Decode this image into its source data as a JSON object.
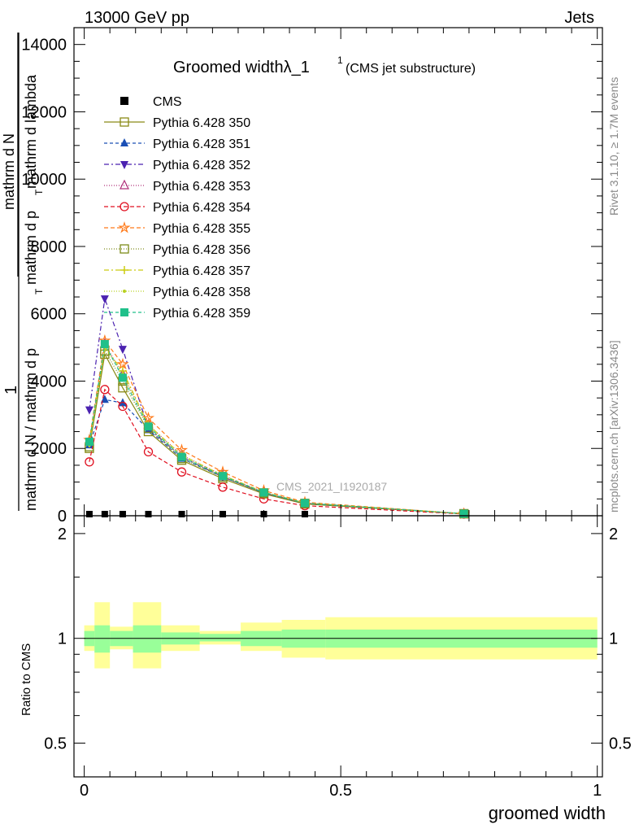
{
  "header": {
    "left": "13000 GeV pp",
    "right": "Jets"
  },
  "title": {
    "main": "Groomed widthλ_1",
    "superscript": "1",
    "sub": "(CMS jet substructure)"
  },
  "ylabel_main_parts": [
    "1",
    "mathrm d N / mathrm d p",
    "T",
    "mathrm d N",
    "mathrm d p",
    "T",
    "mathrm d lambda"
  ],
  "ylabel_ratio": "Ratio to CMS",
  "xlabel": "groomed width",
  "watermark": "CMS_2021_I1920187",
  "side_text": {
    "top": "Rivet 3.1.10, ≥ 1.7M events",
    "bottom": "mcplots.cern.ch [arXiv:1306.3436]"
  },
  "colors": {
    "p350": "#8a8a16",
    "p351": "#1a4fb5",
    "p352": "#4b22b0",
    "p353": "#b0307a",
    "p354": "#e01020",
    "p355": "#ff7a1a",
    "p356": "#7d8c1a",
    "p357": "#cccc10",
    "p358": "#b8d020",
    "p359": "#20c08a",
    "band_inner": "#99ff99",
    "band_outer": "#ffff99"
  },
  "chart_data": [
    {
      "type": "line",
      "panel": "main",
      "x": [
        0.01,
        0.04,
        0.075,
        0.125,
        0.19,
        0.27,
        0.35,
        0.43,
        0.74
      ],
      "xlim": [
        -0.02,
        1.01
      ],
      "ylim": [
        0,
        14500
      ],
      "yticks": [
        0,
        2000,
        4000,
        6000,
        8000,
        10000,
        12000,
        14000
      ],
      "ytick_labels": [
        "0",
        "2000",
        "4000",
        "6000",
        "8000",
        "10000",
        "12000",
        "14000"
      ],
      "series": [
        {
          "name": "CMS",
          "key": "cms",
          "marker": "square-filled",
          "values": [
            5,
            5,
            5,
            5,
            5,
            5,
            5,
            5,
            5
          ]
        },
        {
          "name": "Pythia 6.428 350",
          "key": "p350",
          "marker": "square-open",
          "dash": "",
          "values": [
            2000,
            4800,
            3800,
            2500,
            1650,
            1100,
            650,
            350,
            60
          ]
        },
        {
          "name": "Pythia 6.428 351",
          "key": "p351",
          "marker": "triangle-up-filled",
          "dash": "4,3",
          "values": [
            2100,
            3450,
            3350,
            2550,
            1700,
            1150,
            680,
            370,
            60
          ]
        },
        {
          "name": "Pythia 6.428 352",
          "key": "p352",
          "marker": "triangle-down-filled",
          "dash": "6,3,2,3",
          "values": [
            3150,
            6450,
            4950,
            2600,
            1750,
            1150,
            680,
            370,
            60
          ]
        },
        {
          "name": "Pythia 6.428 353",
          "key": "p353",
          "marker": "triangle-up-open",
          "dash": "1,2",
          "values": [
            2200,
            5100,
            4200,
            2700,
            1800,
            1200,
            700,
            380,
            60
          ]
        },
        {
          "name": "Pythia 6.428 354",
          "key": "p354",
          "marker": "circle-open",
          "dash": "5,3",
          "values": [
            1600,
            3750,
            3250,
            1900,
            1300,
            850,
            500,
            300,
            50
          ]
        },
        {
          "name": "Pythia 6.428 355",
          "key": "p355",
          "marker": "star-open",
          "dash": "5,3",
          "values": [
            2250,
            5200,
            4500,
            2900,
            1950,
            1300,
            750,
            400,
            60
          ]
        },
        {
          "name": "Pythia 6.428 356",
          "key": "p356",
          "marker": "square-open",
          "dash": "1,2",
          "values": [
            2050,
            4900,
            4000,
            2600,
            1700,
            1150,
            680,
            370,
            60
          ]
        },
        {
          "name": "Pythia 6.428 357",
          "key": "p357",
          "marker": "plus",
          "dash": "6,3,2,3",
          "values": [
            2150,
            5000,
            4300,
            2700,
            1800,
            1200,
            700,
            380,
            60
          ]
        },
        {
          "name": "Pythia 6.428 358",
          "key": "p358",
          "marker": "dot",
          "dash": "1,2",
          "values": [
            2100,
            5000,
            4200,
            2650,
            1750,
            1170,
            690,
            375,
            60
          ]
        },
        {
          "name": "Pythia 6.428 359",
          "key": "p359",
          "marker": "square-filled",
          "dash": "4,3",
          "values": [
            2200,
            5100,
            4100,
            2650,
            1750,
            1180,
            690,
            375,
            60
          ]
        }
      ]
    },
    {
      "type": "area",
      "panel": "ratio",
      "ylim": [
        0.4,
        2.25
      ],
      "log_y": true,
      "yticks": [
        0.5,
        1,
        2
      ],
      "ytick_labels": [
        "0.5",
        "1",
        "2"
      ],
      "xticks": [
        0,
        0.5,
        1
      ],
      "xtick_labels": [
        "0",
        "0.5",
        "1"
      ],
      "reference": 1,
      "bins": [
        {
          "lo": 0.0,
          "hi": 0.02,
          "inner": [
            0.95,
            1.05
          ],
          "outer": [
            0.92,
            1.09
          ]
        },
        {
          "lo": 0.02,
          "hi": 0.05,
          "inner": [
            0.91,
            1.09
          ],
          "outer": [
            0.82,
            1.27
          ]
        },
        {
          "lo": 0.05,
          "hi": 0.095,
          "inner": [
            0.95,
            1.05
          ],
          "outer": [
            0.93,
            1.08
          ]
        },
        {
          "lo": 0.095,
          "hi": 0.15,
          "inner": [
            0.91,
            1.09
          ],
          "outer": [
            0.82,
            1.27
          ]
        },
        {
          "lo": 0.15,
          "hi": 0.225,
          "inner": [
            0.96,
            1.04
          ],
          "outer": [
            0.92,
            1.09
          ]
        },
        {
          "lo": 0.225,
          "hi": 0.305,
          "inner": [
            0.98,
            1.03
          ],
          "outer": [
            0.96,
            1.05
          ]
        },
        {
          "lo": 0.305,
          "hi": 0.385,
          "inner": [
            0.95,
            1.05
          ],
          "outer": [
            0.92,
            1.11
          ]
        },
        {
          "lo": 0.385,
          "hi": 0.47,
          "inner": [
            0.94,
            1.06
          ],
          "outer": [
            0.88,
            1.13
          ]
        },
        {
          "lo": 0.47,
          "hi": 1.0,
          "inner": [
            0.94,
            1.06
          ],
          "outer": [
            0.87,
            1.15
          ]
        }
      ]
    }
  ]
}
